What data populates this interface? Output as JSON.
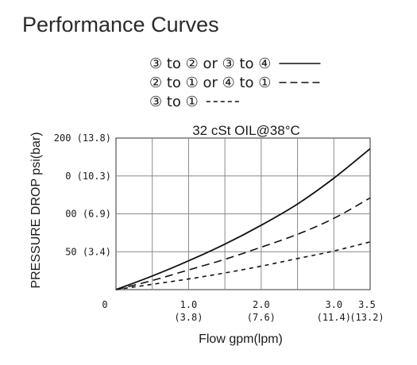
{
  "page": {
    "title": "Performance Curves"
  },
  "chart_data": {
    "type": "line",
    "title": "",
    "condition": "32 cSt OIL@38°C",
    "xlabel": "Flow gpm(lpm)",
    "ylabel": "PRESSURE DROP psi(bar)",
    "xlim": [
      0,
      3.5
    ],
    "ylim": [
      0,
      200
    ],
    "grid": true,
    "legend_position": "top",
    "x_ticks": [
      {
        "value": 0,
        "label": "0",
        "sub": ""
      },
      {
        "value": 1.0,
        "label": "1.0",
        "sub": "(3.8)"
      },
      {
        "value": 2.0,
        "label": "2.0",
        "sub": "(7.6)"
      },
      {
        "value": 3.0,
        "label": "3.0",
        "sub": "(11.4)"
      },
      {
        "value": 3.5,
        "label": "3.5",
        "sub": "(13.2)"
      }
    ],
    "x_grid": [
      0.5,
      1.0,
      1.5,
      2.0,
      2.5,
      3.0
    ],
    "y_ticks": [
      {
        "value": 50,
        "label": "50 (3.4)"
      },
      {
        "value": 100,
        "label": "00 (6.9)"
      },
      {
        "value": 150,
        "label": "0 (10.3)"
      },
      {
        "value": 200,
        "label": "200 (13.8)"
      }
    ],
    "y_grid": [
      50,
      100,
      150
    ],
    "series": [
      {
        "name": "③ to ② or ③ to ④",
        "style": "solid",
        "x": [
          0,
          0.5,
          1.0,
          1.5,
          2.0,
          2.5,
          3.0,
          3.5
        ],
        "y": [
          0,
          18,
          38,
          60,
          85,
          113,
          147,
          186
        ]
      },
      {
        "name": "② to ① or ④ to ①",
        "style": "long-dash",
        "x": [
          0,
          0.5,
          1.0,
          1.5,
          2.0,
          2.5,
          3.0,
          3.5
        ],
        "y": [
          0,
          12,
          26,
          40,
          56,
          73,
          94,
          121
        ]
      },
      {
        "name": "③ to ①",
        "style": "short-dash",
        "x": [
          0,
          0.5,
          1.0,
          1.5,
          2.0,
          2.5,
          3.0,
          3.5
        ],
        "y": [
          0,
          7,
          14,
          22,
          31,
          41,
          51,
          63
        ]
      }
    ],
    "colors": {
      "line": "#111111",
      "grid": "#8a8a8a",
      "frame": "#333333"
    }
  }
}
